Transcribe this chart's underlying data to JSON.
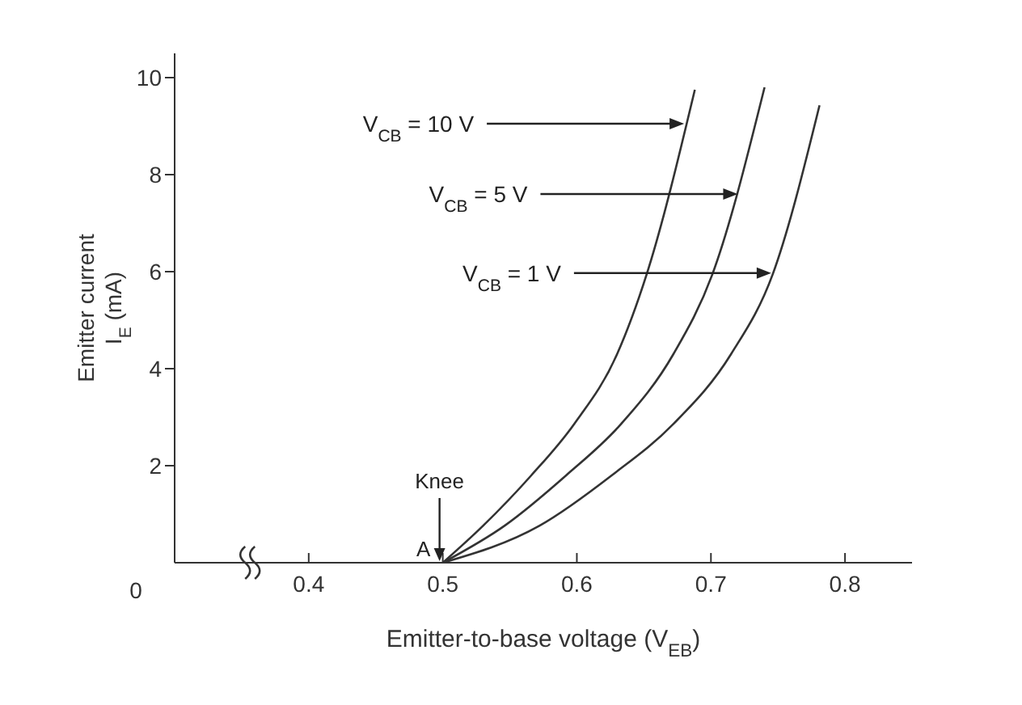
{
  "chart_data": {
    "type": "line",
    "xlabel": "Emitter-to-base voltage (V$_{EB}$)",
    "ylabel": "Emitter current\nI$_{E}$ (mA)",
    "xlim": [
      0.3,
      0.85
    ],
    "xticks": [
      0.4,
      0.5,
      0.6,
      0.7,
      0.8
    ],
    "ylim": [
      0,
      10.5
    ],
    "yticks": [
      2,
      4,
      6,
      8,
      10
    ],
    "grid": false,
    "legend": false,
    "marker": "none",
    "line_style": "solid",
    "series": [
      {
        "color": "#333333",
        "x": [
          0.5,
          0.53,
          0.566,
          0.598,
          0.63,
          0.652,
          0.688
        ],
        "values": [
          0,
          0.76,
          1.8,
          2.86,
          4.3,
          5.94,
          9.75
        ]
      },
      {
        "color": "#333333",
        "x": [
          0.5,
          0.546,
          0.592,
          0.633,
          0.672,
          0.701,
          0.74
        ],
        "values": [
          0,
          0.76,
          1.8,
          2.86,
          4.3,
          5.94,
          9.8
        ]
      },
      {
        "color": "#333333",
        "x": [
          0.5,
          0.572,
          0.626,
          0.672,
          0.715,
          0.746,
          0.781
        ],
        "values": [
          0,
          0.76,
          1.8,
          2.86,
          4.3,
          5.94,
          9.43
        ]
      }
    ],
    "annotations": [
      "0",
      {
        "text": "V$_{CB}$ = 10 V",
        "x": 0.68,
        "y": 9.05
      },
      {
        "text": "V$_{CB}$ = 5 V",
        "x": 0.72,
        "y": 7.6
      },
      {
        "text": "V$_{CB}$ = 1 V",
        "x": 0.745,
        "y": 5.97
      },
      {
        "text": "Knee",
        "x": 0.5,
        "y": 0
      },
      {
        "text": "A",
        "x": 0.5,
        "y": 0
      }
    ]
  }
}
